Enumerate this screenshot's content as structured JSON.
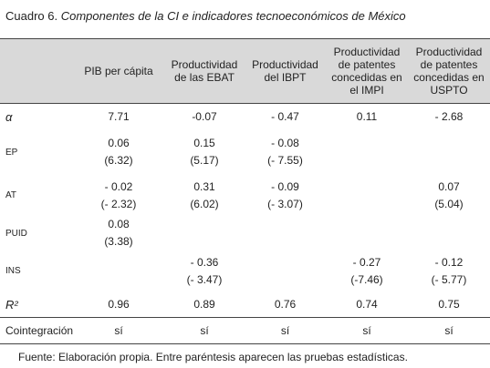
{
  "header": {
    "label": "Cuadro 6.",
    "title": "Componentes de la CI e indicadores tecnoeconómicos de México"
  },
  "table": {
    "columns": [
      "PIB per cápita",
      "Productividad de las EBAT",
      "Productividad del IBPT",
      "Productividad de patentes concedidas en el IMPI",
      "Productividad de patentes concedidas en USPTO"
    ],
    "rows": [
      {
        "label": "α",
        "cells": [
          [
            "7.71"
          ],
          [
            "-0.07"
          ],
          [
            "- 0.47"
          ],
          [
            "0.11"
          ],
          [
            "- 2.68"
          ]
        ]
      },
      {
        "label": "EP",
        "cells": [
          [
            "0.06",
            "(6.32)"
          ],
          [
            "0.15",
            "(5.17)"
          ],
          [
            "- 0.08",
            "(- 7.55)"
          ],
          [],
          []
        ]
      },
      {
        "label": "AT",
        "cells": [
          [
            "- 0.02",
            "(- 2.32)"
          ],
          [
            "0.31",
            "(6.02)"
          ],
          [
            "- 0.09",
            "(- 3.07)"
          ],
          [],
          [
            "0.07",
            "(5.04)"
          ]
        ]
      },
      {
        "label": "PUID",
        "cells": [
          [
            "0.08",
            "(3.38)"
          ],
          [],
          [],
          [],
          []
        ]
      },
      {
        "label": "INS",
        "cells": [
          [],
          [
            "- 0.36",
            "(- 3.47)"
          ],
          [],
          [
            "- 0.27",
            "(-7.46)"
          ],
          [
            "- 0.12",
            "(- 5.77)"
          ]
        ]
      },
      {
        "label": "R²",
        "cells": [
          [
            "0.96"
          ],
          [
            "0.89"
          ],
          [
            "0.76"
          ],
          [
            "0.74"
          ],
          [
            "0.75"
          ]
        ]
      },
      {
        "label": "Cointegración",
        "cells": [
          [
            "sí"
          ],
          [
            "sí"
          ],
          [
            "sí"
          ],
          [
            "sí"
          ],
          [
            "sí"
          ]
        ]
      }
    ]
  },
  "footer": "Fuente: Elaboración propia. Entre paréntesis aparecen las pruebas estadísticas."
}
